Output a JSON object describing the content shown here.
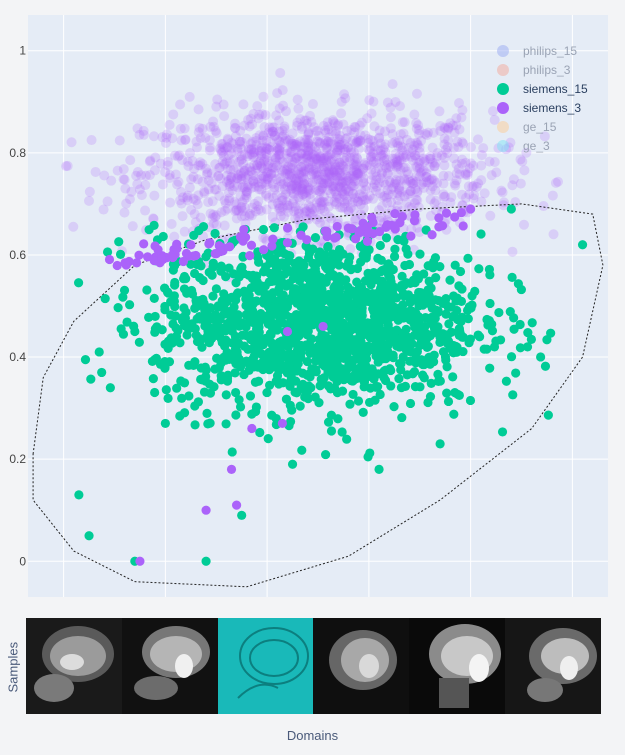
{
  "chart_data": {
    "type": "scatter",
    "title": "",
    "xlabel": "",
    "ylabel": "",
    "ylim": [
      -0.07,
      1.07
    ],
    "xlim": [
      -0.07,
      1.07
    ],
    "yticks": [
      "0",
      "0.2",
      "0.4",
      "0.6",
      "0.8",
      "1"
    ],
    "ytick_values": [
      0,
      0.2,
      0.4,
      0.6,
      0.8,
      1
    ],
    "grid": true,
    "legend_position": "top-right",
    "series": [
      {
        "name": "philips_15",
        "color": "#9aaaf2",
        "visible": false,
        "values": []
      },
      {
        "name": "philips_3",
        "color": "#f4a899",
        "visible": false,
        "values": []
      },
      {
        "name": "siemens_15",
        "color": "#00cc96",
        "visible": true,
        "values": [
          [
            0.03,
            0.13
          ],
          [
            0.05,
            0.05
          ],
          [
            0.07,
            0.41
          ],
          [
            0.14,
            0.0
          ],
          [
            0.28,
            0.0
          ],
          [
            0.35,
            0.09
          ],
          [
            0.52,
            0.52
          ],
          [
            1.02,
            0.62
          ],
          [
            0.88,
            0.69
          ],
          [
            0.45,
            0.19
          ],
          [
            0.62,
            0.18
          ],
          [
            0.74,
            0.23
          ],
          [
            0.14,
            0.45
          ],
          [
            0.2,
            0.27
          ]
        ]
      },
      {
        "name": "siemens_3",
        "color": "#ab63fa",
        "visible": true,
        "values": [
          [
            0.15,
            0.0
          ],
          [
            0.28,
            0.1
          ],
          [
            0.34,
            0.11
          ],
          [
            0.33,
            0.18
          ],
          [
            0.44,
            0.45
          ],
          [
            0.51,
            0.46
          ],
          [
            0.8,
            0.69
          ],
          [
            0.37,
            0.26
          ],
          [
            0.43,
            0.27
          ]
        ]
      },
      {
        "name": "ge_15",
        "color": "#fecb94",
        "visible": false,
        "values": []
      },
      {
        "name": "ge_3",
        "color": "#7fe3f3",
        "visible": false,
        "values": []
      }
    ],
    "background_series": {
      "color": "#ab63fa",
      "center": [
        0.5,
        0.76
      ]
    }
  },
  "panel": {
    "ylabel": "Samples",
    "xlabel": "Domains"
  }
}
